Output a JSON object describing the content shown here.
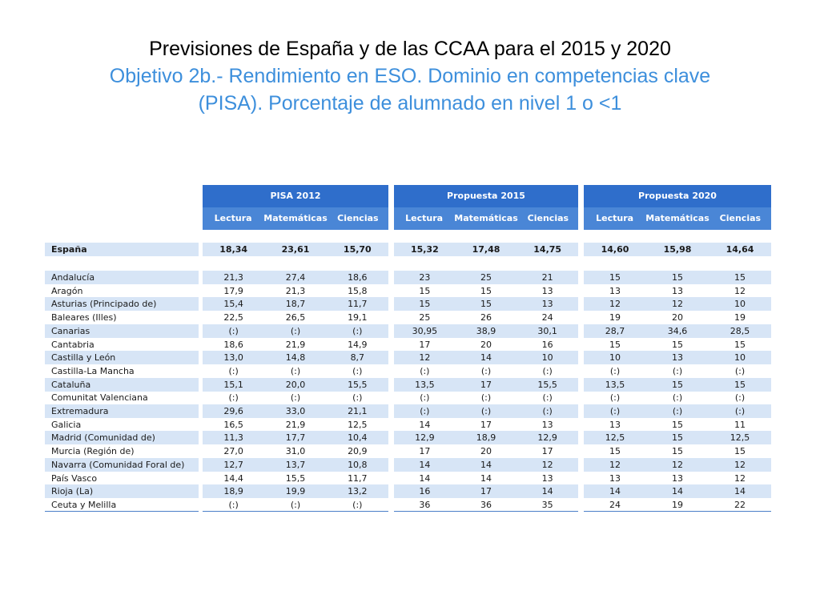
{
  "title": "Previsiones de España y de las CCAA para el 2015 y 2020",
  "subtitle_line1": "Objetivo 2b.- Rendimiento en ESO. Dominio en competencias clave",
  "subtitle_line2": "(PISA). Porcentaje de alumnado en nivel 1 o <1",
  "groups": [
    "PISA 2012",
    "Propuesta 2015",
    "Propuesta 2020"
  ],
  "subheaders": [
    "Lectura",
    "Matemáticas",
    "Ciencias"
  ],
  "espana": {
    "name": "España",
    "values": [
      "18,34",
      "23,61",
      "15,70",
      "15,32",
      "17,48",
      "14,75",
      "14,60",
      "15,98",
      "14,64"
    ]
  },
  "rows": [
    {
      "name": "Andalucía",
      "values": [
        "21,3",
        "27,4",
        "18,6",
        "23",
        "25",
        "21",
        "15",
        "15",
        "15"
      ]
    },
    {
      "name": "Aragón",
      "values": [
        "17,9",
        "21,3",
        "15,8",
        "15",
        "15",
        "13",
        "13",
        "13",
        "12"
      ]
    },
    {
      "name": "Asturias (Principado de)",
      "values": [
        "15,4",
        "18,7",
        "11,7",
        "15",
        "15",
        "13",
        "12",
        "12",
        "10"
      ]
    },
    {
      "name": "Baleares (Illes)",
      "values": [
        "22,5",
        "26,5",
        "19,1",
        "25",
        "26",
        "24",
        "19",
        "20",
        "19"
      ]
    },
    {
      "name": "Canarias",
      "values": [
        "(:)",
        "(:)",
        "(:)",
        "30,95",
        "38,9",
        "30,1",
        "28,7",
        "34,6",
        "28,5"
      ]
    },
    {
      "name": "Cantabria",
      "values": [
        "18,6",
        "21,9",
        "14,9",
        "17",
        "20",
        "16",
        "15",
        "15",
        "15"
      ]
    },
    {
      "name": "Castilla y León",
      "values": [
        "13,0",
        "14,8",
        "8,7",
        "12",
        "14",
        "10",
        "10",
        "13",
        "10"
      ]
    },
    {
      "name": "Castilla-La Mancha",
      "values": [
        "(:)",
        "(:)",
        "(:)",
        "(:)",
        "(:)",
        "(:)",
        "(:)",
        "(:)",
        "(:)"
      ]
    },
    {
      "name": "Cataluña",
      "values": [
        "15,1",
        "20,0",
        "15,5",
        "13,5",
        "17",
        "15,5",
        "13,5",
        "15",
        "15"
      ]
    },
    {
      "name": "Comunitat Valenciana",
      "values": [
        "(:)",
        "(:)",
        "(:)",
        "(:)",
        "(:)",
        "(:)",
        "(:)",
        "(:)",
        "(:)"
      ]
    },
    {
      "name": "Extremadura",
      "values": [
        "29,6",
        "33,0",
        "21,1",
        "(:)",
        "(:)",
        "(:)",
        "(:)",
        "(:)",
        "(:)"
      ]
    },
    {
      "name": "Galicia",
      "values": [
        "16,5",
        "21,9",
        "12,5",
        "14",
        "17",
        "13",
        "13",
        "15",
        "11"
      ]
    },
    {
      "name": "Madrid (Comunidad de)",
      "values": [
        "11,3",
        "17,7",
        "10,4",
        "12,9",
        "18,9",
        "12,9",
        "12,5",
        "15",
        "12,5"
      ]
    },
    {
      "name": "Murcia (Región de)",
      "values": [
        "27,0",
        "31,0",
        "20,9",
        "17",
        "20",
        "17",
        "15",
        "15",
        "15"
      ]
    },
    {
      "name": "Navarra (Comunidad Foral de)",
      "values": [
        "12,7",
        "13,7",
        "10,8",
        "14",
        "14",
        "12",
        "12",
        "12",
        "12"
      ]
    },
    {
      "name": "País Vasco",
      "values": [
        "14,4",
        "15,5",
        "11,7",
        "14",
        "14",
        "13",
        "13",
        "13",
        "12"
      ]
    },
    {
      "name": "Rioja (La)",
      "values": [
        "18,9",
        "19,9",
        "13,2",
        "16",
        "17",
        "14",
        "14",
        "14",
        "14"
      ]
    },
    {
      "name": "Ceuta y Melilla",
      "values": [
        "(:)",
        "(:)",
        "(:)",
        "36",
        "36",
        "35",
        "24",
        "19",
        "22"
      ]
    }
  ]
}
